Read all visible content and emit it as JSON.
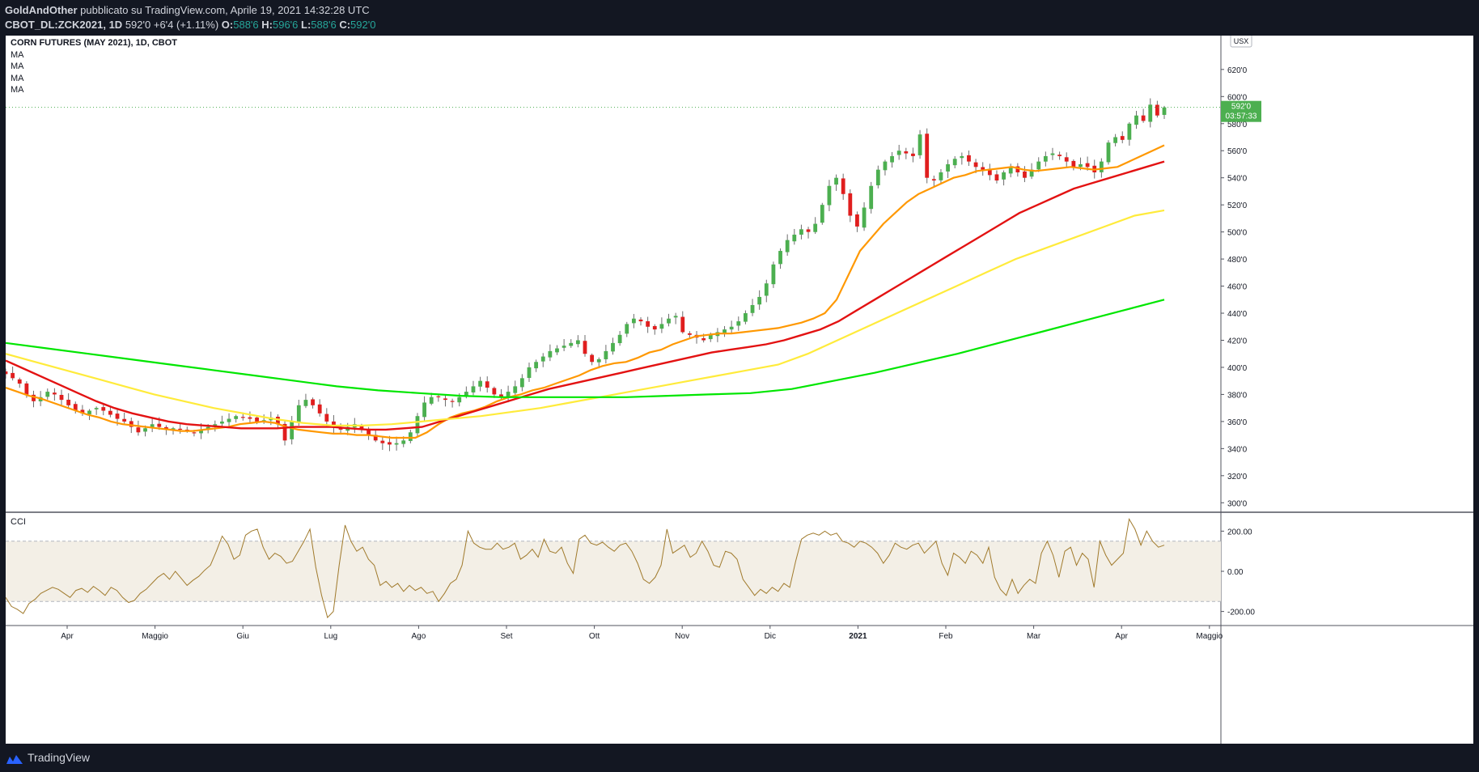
{
  "header": {
    "author": "GoldAndOther",
    "published_text": "pubblicato su TradingView.com, Aprile 19, 2021 14:32:28 UTC",
    "symbol": "CBOT_DL:ZCK2021, 1D",
    "last": "592'0",
    "change": "+6'4 (+1.11%)",
    "o_label": "O:",
    "o": "588'6",
    "h_label": "H:",
    "h": "596'6",
    "l_label": "L:",
    "l": "588'6",
    "c_label": "C:",
    "c": "592'0"
  },
  "legend": {
    "title": "CORN FUTURES (MAY 2021), 1D, CBOT",
    "ma_labels": [
      "MA",
      "MA",
      "MA",
      "MA"
    ]
  },
  "currency_badge": "USX",
  "price_tag": {
    "value": "592'0",
    "countdown": "03:57:33"
  },
  "cci": {
    "title": "CCI"
  },
  "footer": {
    "brand": "TradingView"
  },
  "colors": {
    "up": "#4caf50",
    "down": "#e01e1e",
    "ma_fast": "#ff9800",
    "ma_mid": "#e31212",
    "ma_slow": "#ffeb3b",
    "ma_long": "#00e600",
    "cci": "#a07a2c",
    "cci_band": "#f3efe6"
  },
  "chart_data": [
    {
      "type": "candlestick",
      "title": "CORN FUTURES (MAY 2021), 1D, CBOT",
      "x_ticks": [
        "Apr",
        "Maggio",
        "Giu",
        "Lug",
        "Ago",
        "Set",
        "Ott",
        "Nov",
        "Dic",
        "2021",
        "Feb",
        "Mar",
        "Apr",
        "Maggio"
      ],
      "y_ticks": [
        "300'0",
        "320'0",
        "340'0",
        "360'0",
        "380'0",
        "400'0",
        "420'0",
        "440'0",
        "460'0",
        "480'0",
        "500'0",
        "520'0",
        "540'0",
        "560'0",
        "580'0",
        "600'0",
        "620'0"
      ],
      "ylim": [
        293,
        645
      ],
      "close": [
        395,
        392,
        388,
        380,
        375,
        378,
        382,
        380,
        376,
        372,
        368,
        366,
        368,
        370,
        368,
        365,
        362,
        360,
        356,
        352,
        355,
        358,
        356,
        354,
        355,
        354,
        353,
        352,
        354,
        356,
        358,
        360,
        362,
        364,
        363,
        362,
        360,
        361,
        363,
        358,
        346,
        360,
        372,
        376,
        372,
        366,
        360,
        356,
        354,
        356,
        358,
        354,
        350,
        346,
        344,
        343,
        344,
        346,
        352,
        364,
        374,
        378,
        378,
        376,
        375,
        378,
        382,
        386,
        390,
        385,
        380,
        378,
        382,
        386,
        392,
        400,
        404,
        408,
        412,
        414,
        416,
        418,
        420,
        410,
        404,
        406,
        412,
        418,
        424,
        432,
        436,
        434,
        430,
        428,
        432,
        436,
        438,
        426,
        424,
        422,
        420,
        424,
        426,
        428,
        430,
        434,
        440,
        446,
        452,
        462,
        476,
        486,
        494,
        498,
        502,
        500,
        506,
        520,
        534,
        540,
        528,
        512,
        504,
        518,
        534,
        546,
        552,
        556,
        560,
        558,
        556,
        572,
        540,
        538,
        544,
        550,
        554,
        556,
        552,
        548,
        546,
        542,
        538,
        544,
        548,
        544,
        540,
        546,
        552,
        556,
        558,
        556,
        552,
        548,
        550,
        548,
        544,
        552,
        566,
        570,
        568,
        580,
        586,
        582,
        594,
        586,
        592
      ],
      "series": [
        {
          "name": "MA",
          "values": [
            385,
            382,
            379,
            377,
            374,
            371,
            368,
            365,
            363,
            360,
            358,
            357,
            356,
            355,
            354,
            353,
            353,
            354,
            355,
            356,
            358,
            359,
            360,
            359,
            356,
            354,
            353,
            352,
            351,
            351,
            350,
            350,
            349,
            348,
            348,
            348,
            352,
            358,
            363,
            366,
            368,
            371,
            375,
            378,
            380,
            383,
            385,
            388,
            391,
            394,
            398,
            401,
            403,
            404,
            407,
            411,
            413,
            417,
            420,
            423,
            424,
            425,
            425,
            426,
            427,
            428,
            429,
            431,
            433,
            436,
            440,
            450,
            468,
            486,
            496,
            506,
            514,
            522,
            528,
            532,
            536,
            540,
            542,
            545,
            546,
            547,
            548,
            546,
            545,
            546,
            547,
            548,
            547,
            546,
            547,
            548,
            552,
            556,
            560,
            564
          ]
        },
        {
          "name": "MA",
          "values": [
            405,
            399,
            393,
            387,
            381,
            375,
            370,
            366,
            363,
            360,
            358,
            357,
            356,
            355,
            355,
            355,
            356,
            356,
            356,
            355,
            354,
            354,
            355,
            356,
            360,
            364,
            368,
            372,
            376,
            380,
            384,
            387,
            390,
            393,
            396,
            399,
            402,
            405,
            408,
            411,
            413,
            415,
            417,
            420,
            424,
            428,
            434,
            442,
            450,
            458,
            466,
            474,
            482,
            490,
            498,
            506,
            514,
            520,
            526,
            532,
            536,
            540,
            544,
            548,
            552
          ]
        },
        {
          "name": "MA",
          "values": [
            410,
            404,
            398,
            392,
            386,
            380,
            375,
            370,
            366,
            362,
            359,
            357,
            357,
            358,
            360,
            362,
            364,
            367,
            370,
            374,
            378,
            382,
            386,
            390,
            394,
            398,
            402,
            410,
            420,
            430,
            440,
            450,
            460,
            470,
            480,
            488,
            496,
            504,
            512,
            516
          ]
        },
        {
          "name": "MA",
          "values": [
            418,
            414,
            410,
            406,
            402,
            398,
            394,
            390,
            386,
            383,
            381,
            379,
            378,
            378,
            378,
            378,
            379,
            380,
            381,
            384,
            390,
            396,
            403,
            410,
            418,
            426,
            434,
            442,
            450
          ]
        }
      ]
    },
    {
      "type": "line",
      "title": "CCI",
      "y_ticks": [
        "-200.00",
        "0.00",
        "200.00"
      ],
      "band": [
        -150,
        150
      ],
      "ylim": [
        -270,
        290
      ],
      "series": [
        {
          "name": "",
          "values": [
            -130,
            -175,
            -190,
            -210,
            -160,
            -140,
            -110,
            -95,
            -80,
            -90,
            -110,
            -130,
            -95,
            -85,
            -105,
            -75,
            -95,
            -120,
            -80,
            -95,
            -130,
            -155,
            -145,
            -110,
            -90,
            -60,
            -30,
            -10,
            -40,
            0,
            -35,
            -70,
            -45,
            -25,
            5,
            30,
            100,
            175,
            135,
            60,
            80,
            180,
            200,
            210,
            120,
            60,
            90,
            75,
            40,
            50,
            100,
            150,
            210,
            20,
            -120,
            -230,
            -200,
            30,
            230,
            150,
            100,
            120,
            60,
            30,
            -70,
            -50,
            -80,
            -60,
            -100,
            -70,
            -95,
            -80,
            -110,
            -100,
            -150,
            -110,
            -60,
            -40,
            30,
            200,
            140,
            120,
            110,
            110,
            140,
            110,
            120,
            140,
            60,
            80,
            110,
            70,
            160,
            100,
            90,
            120,
            40,
            -10,
            160,
            180,
            140,
            130,
            145,
            120,
            100,
            130,
            140,
            100,
            40,
            -40,
            -60,
            -30,
            30,
            210,
            90,
            110,
            130,
            70,
            90,
            150,
            100,
            30,
            20,
            100,
            90,
            60,
            -40,
            -80,
            -120,
            -90,
            -110,
            -80,
            -100,
            -60,
            -80,
            50,
            160,
            180,
            190,
            180,
            200,
            180,
            190,
            150,
            140,
            120,
            150,
            140,
            120,
            90,
            40,
            80,
            140,
            120,
            110,
            130,
            140,
            90,
            120,
            150,
            40,
            -20,
            90,
            70,
            40,
            100,
            80,
            40,
            120,
            -30,
            -90,
            -120,
            -40,
            -110,
            -70,
            -40,
            -60,
            90,
            150,
            80,
            -30,
            100,
            120,
            30,
            90,
            60,
            -80,
            150,
            80,
            30,
            60,
            90,
            260,
            210,
            130,
            200,
            150,
            120,
            130
          ]
        }
      ]
    }
  ]
}
